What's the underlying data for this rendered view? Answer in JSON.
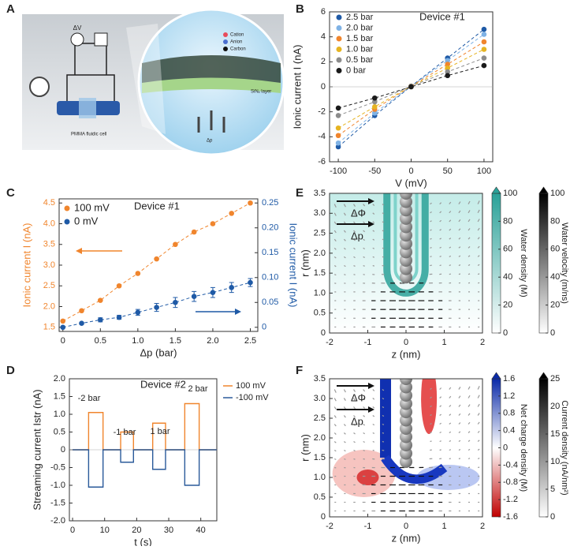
{
  "illustration": {
    "label": "A",
    "texts": [
      "ΔV",
      "Cation",
      "Anion",
      "Carbon",
      "SiNₓ layer",
      "PMMA fluidic cell",
      "Δp"
    ]
  },
  "chart_data": [
    {
      "label": "B",
      "type": "line",
      "title": "Device #1",
      "xlabel": "V (mV)",
      "ylabel": "Ionic current I (nA)",
      "x": [
        -100,
        -50,
        0,
        50,
        100
      ],
      "xlim": [
        -112,
        112
      ],
      "xticks": [
        -100,
        -50,
        0,
        50,
        100
      ],
      "ylim": [
        -6,
        6
      ],
      "yticks": [
        -6,
        -4,
        -2,
        0,
        2,
        4,
        6
      ],
      "markers": true,
      "line_style": "dashed",
      "series": [
        {
          "name": "2.5 bar",
          "color": "#1f5aa6",
          "values": [
            -4.8,
            -2.3,
            0.05,
            2.3,
            4.6
          ]
        },
        {
          "name": "2.0 bar",
          "color": "#7fb2e5",
          "values": [
            -4.5,
            -2.1,
            0.05,
            2.1,
            4.2
          ]
        },
        {
          "name": "1.5 bar",
          "color": "#f0852d",
          "values": [
            -3.9,
            -1.8,
            0.05,
            1.8,
            3.6
          ]
        },
        {
          "name": "1.0 bar",
          "color": "#e6b422",
          "values": [
            -3.3,
            -1.6,
            0.05,
            1.5,
            3.0
          ]
        },
        {
          "name": "0.5 bar",
          "color": "#8c8c8c",
          "values": [
            -2.3,
            -1.2,
            0.05,
            1.2,
            2.3
          ]
        },
        {
          "name": "0 bar",
          "color": "#1a1a1a",
          "values": [
            -1.7,
            -0.9,
            0.0,
            0.9,
            1.7
          ]
        }
      ]
    },
    {
      "label": "C",
      "type": "line",
      "title": "Device #1",
      "xlabel": "Δp (bar)",
      "ylabel": "Ionic current I (nA)",
      "y2label": "Ionic current I (nA)",
      "x": [
        0,
        0.25,
        0.5,
        0.75,
        1.0,
        1.25,
        1.5,
        1.75,
        2.0,
        2.25,
        2.5
      ],
      "xlim": [
        -0.05,
        2.6
      ],
      "xticks": [
        0,
        0.5,
        {
          "value": 1,
          "label": "1.0"
        },
        1.5,
        {
          "value": 2,
          "label": "2.0"
        },
        2.5
      ],
      "ylim": [
        1.4,
        4.6
      ],
      "yticks": [
        1.5,
        {
          "value": 2,
          "label": "2.0"
        },
        2.5,
        {
          "value": 3,
          "label": "3.0"
        },
        3.5,
        {
          "value": 4,
          "label": "4.0"
        },
        4.5
      ],
      "y2lim": [
        -0.0083,
        0.2583
      ],
      "y2ticks": [
        0,
        0.05,
        {
          "value": 0.1,
          "label": "0.10"
        },
        0.15,
        {
          "value": 0.2,
          "label": "0.20"
        },
        0.25
      ],
      "markers": true,
      "line_style": "dashed",
      "series": [
        {
          "name": "100 mV",
          "color": "#f0852d",
          "values": [
            1.65,
            1.9,
            2.15,
            2.5,
            2.8,
            3.15,
            3.5,
            3.8,
            4.0,
            4.25,
            4.5
          ]
        },
        {
          "name": "0 mV",
          "color": "#1f5aa6",
          "axis": "y2",
          "values": [
            0.0,
            0.008,
            0.015,
            0.02,
            0.03,
            0.04,
            0.05,
            0.062,
            0.07,
            0.08,
            0.09
          ],
          "errors": [
            0,
            0.002,
            0.004,
            0.004,
            0.006,
            0.008,
            0.01,
            0.01,
            0.01,
            0.01,
            0.008
          ]
        }
      ]
    },
    {
      "label": "D",
      "type": "line",
      "title": "Device #2",
      "xlabel": "t (s)",
      "ylabel": "Streaming current Istr (nA)",
      "annotations": [
        "-2 bar",
        "-1 bar",
        "1 bar",
        "2 bar"
      ],
      "x": [
        0,
        5,
        5,
        9.5,
        9.5,
        15,
        15,
        19,
        19,
        25,
        25,
        29,
        29,
        35,
        35,
        39.5,
        39.5,
        45
      ],
      "xlim": [
        -1,
        45
      ],
      "xticks": [
        0,
        10,
        20,
        30,
        40
      ],
      "ylim": [
        -2,
        2
      ],
      "yticks": [
        {
          "value": -2,
          "label": "-2.0"
        },
        -1.5,
        {
          "value": -1,
          "label": "-1.0"
        },
        -0.5,
        0,
        0.5,
        {
          "value": 1,
          "label": "1.0"
        },
        1.5,
        {
          "value": 2,
          "label": "2.0"
        }
      ],
      "markers": false,
      "line_style": "solid",
      "series": [
        {
          "name": "100 mV",
          "color": "#f0852d",
          "values": [
            0,
            0,
            1.05,
            1.05,
            0,
            0,
            0.5,
            0.5,
            0,
            0,
            0.75,
            0.75,
            0,
            0,
            1.3,
            1.3,
            0,
            0
          ]
        },
        {
          "name": "-100 mV",
          "color": "#2a5a9a",
          "values": [
            0,
            0,
            -1.05,
            -1.05,
            0,
            0,
            -0.35,
            -0.35,
            0,
            0,
            -0.55,
            -0.55,
            0,
            0,
            -1.0,
            -1.0,
            0,
            0
          ]
        }
      ]
    },
    {
      "label": "E",
      "type": "heatmap",
      "xlabel": "z (nm)",
      "ylabel": "r (nm)",
      "annotations": [
        "ΔΦ",
        "Δp"
      ],
      "xlim": [
        -2,
        2
      ],
      "xticks": [
        -2,
        -1,
        0,
        1,
        2
      ],
      "ylim": [
        0,
        3.5
      ],
      "yticks": [
        0,
        0.5,
        {
          "value": 1,
          "label": "1.0"
        },
        1.5,
        {
          "value": 2,
          "label": "2.0"
        },
        2.5,
        {
          "value": 3,
          "label": "3.0"
        },
        3.5
      ],
      "colorbars": [
        {
          "label": "Water density (M)",
          "lim": [
            0,
            100
          ],
          "ticks": [
            0,
            20,
            40,
            60,
            80,
            100
          ],
          "colors": [
            "#ffffff",
            "#2aa198"
          ]
        },
        {
          "label": "Water velocity (m/ns)",
          "lim": [
            0,
            100
          ],
          "ticks": [
            0,
            20,
            40,
            60,
            80,
            100
          ],
          "colors": [
            "#ffffff",
            "#000000"
          ]
        }
      ]
    },
    {
      "label": "F",
      "type": "heatmap",
      "xlabel": "z (nm)",
      "ylabel": "r (nm)",
      "annotations": [
        "ΔΦ",
        "Δp"
      ],
      "xlim": [
        -2,
        2
      ],
      "xticks": [
        -2,
        -1,
        0,
        1,
        2
      ],
      "ylim": [
        0,
        3.5
      ],
      "yticks": [
        0,
        0.5,
        {
          "value": 1,
          "label": "1.0"
        },
        1.5,
        {
          "value": 2,
          "label": "2.0"
        },
        2.5,
        {
          "value": 3,
          "label": "3.0"
        },
        3.5
      ],
      "colorbars": [
        {
          "label": "Net charge density (M)",
          "lim": [
            -1.6,
            1.6
          ],
          "ticks": [
            -1.6,
            -1.2,
            -0.8,
            -0.4,
            0,
            0.4,
            0.8,
            1.2,
            1.6
          ],
          "colors": [
            "#c00000",
            "#ffffff",
            "#0a2aa8"
          ]
        },
        {
          "label": "Current density (nA/nm²)",
          "lim": [
            0,
            25
          ],
          "ticks": [
            0,
            5,
            10,
            15,
            20,
            25
          ],
          "colors": [
            "#ffffff",
            "#000000"
          ]
        }
      ]
    }
  ]
}
